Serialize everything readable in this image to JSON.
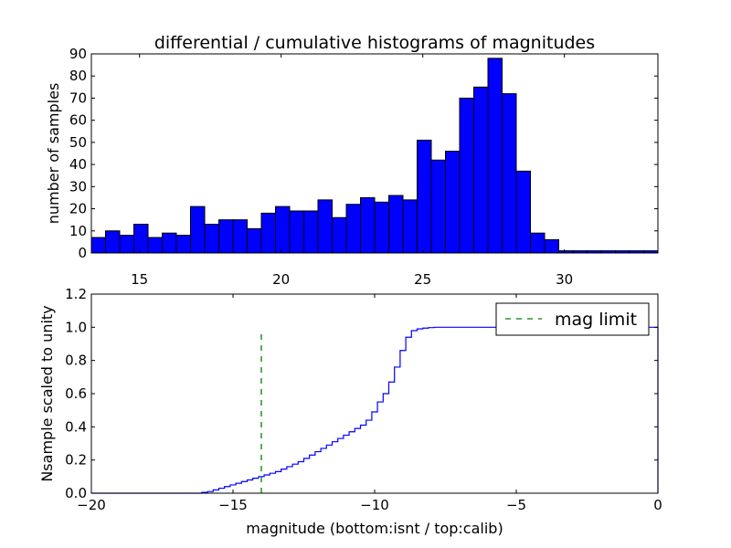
{
  "chart_data": [
    {
      "type": "bar",
      "title": "differential / cumulative histograms of magnitudes",
      "xlabel": "",
      "ylabel": "number of samples",
      "xlim": [
        13.3,
        33.3
      ],
      "ylim": [
        0,
        90
      ],
      "xticks": [
        15,
        20,
        25,
        30
      ],
      "yticks": [
        0,
        10,
        20,
        30,
        40,
        50,
        60,
        70,
        80,
        90
      ],
      "bar_color": "#0000ff",
      "bin_edges": [
        13.3,
        13.8,
        14.3,
        14.8,
        15.3,
        15.8,
        16.3,
        16.8,
        17.3,
        17.8,
        18.3,
        18.8,
        19.3,
        19.8,
        20.3,
        20.8,
        21.3,
        21.8,
        22.3,
        22.8,
        23.3,
        23.8,
        24.3,
        24.8,
        25.3,
        25.8,
        26.3,
        26.8,
        27.3,
        27.8,
        28.3,
        28.8,
        29.3,
        29.8,
        30.3,
        30.8,
        31.3,
        31.8,
        32.3,
        32.8,
        33.3
      ],
      "values": [
        7,
        10,
        8,
        13,
        7,
        9,
        8,
        21,
        13,
        15,
        15,
        11,
        18,
        21,
        19,
        19,
        24,
        16,
        22,
        25,
        23,
        26,
        24,
        51,
        42,
        46,
        70,
        75,
        88,
        72,
        37,
        9,
        6,
        1,
        1,
        1,
        1,
        1,
        1,
        1
      ]
    },
    {
      "type": "line",
      "title": "",
      "xlabel": "magnitude (bottom:isnt / top:calib)",
      "ylabel": "Nsample scaled to unity",
      "xlim": [
        -20,
        0
      ],
      "ylim": [
        0,
        1.2
      ],
      "xticks": [
        -20,
        -15,
        -10,
        -5,
        0
      ],
      "xtick_labels": [
        "−20",
        "−15",
        "−10",
        "−5",
        "0"
      ],
      "yticks": [
        0.0,
        0.2,
        0.4,
        0.6,
        0.8,
        1.0,
        1.2
      ],
      "ytick_labels": [
        "0.0",
        "0.2",
        "0.4",
        "0.6",
        "0.8",
        "1.0",
        "1.2"
      ],
      "legend_position": "top-right",
      "series": [
        {
          "name": "",
          "style": "step",
          "color": "#0000ff",
          "x": [
            -20,
            -16.1,
            -15.9,
            -15.7,
            -15.5,
            -15.3,
            -15.1,
            -14.9,
            -14.7,
            -14.5,
            -14.3,
            -14.1,
            -13.9,
            -13.7,
            -13.5,
            -13.3,
            -13.1,
            -12.9,
            -12.7,
            -12.5,
            -12.3,
            -12.1,
            -11.9,
            -11.7,
            -11.5,
            -11.3,
            -11.1,
            -10.9,
            -10.7,
            -10.5,
            -10.3,
            -10.1,
            -9.9,
            -9.7,
            -9.5,
            -9.3,
            -9.1,
            -8.9,
            -8.7,
            -8.5,
            -8.3,
            -8.1,
            -7.9,
            -7.5,
            -7.0,
            0
          ],
          "y": [
            0.0,
            0.005,
            0.01,
            0.02,
            0.03,
            0.04,
            0.05,
            0.06,
            0.07,
            0.08,
            0.09,
            0.1,
            0.11,
            0.12,
            0.13,
            0.145,
            0.16,
            0.175,
            0.19,
            0.21,
            0.23,
            0.25,
            0.27,
            0.29,
            0.31,
            0.33,
            0.35,
            0.37,
            0.39,
            0.41,
            0.44,
            0.49,
            0.55,
            0.6,
            0.67,
            0.76,
            0.86,
            0.94,
            0.98,
            0.99,
            0.995,
            0.998,
            1.0,
            1.0,
            1.0,
            1.0
          ]
        },
        {
          "name": "mag limit",
          "style": "dashed",
          "color": "#008000",
          "x": [
            -14,
            -14
          ],
          "y": [
            0.0,
            0.97
          ]
        }
      ]
    }
  ]
}
